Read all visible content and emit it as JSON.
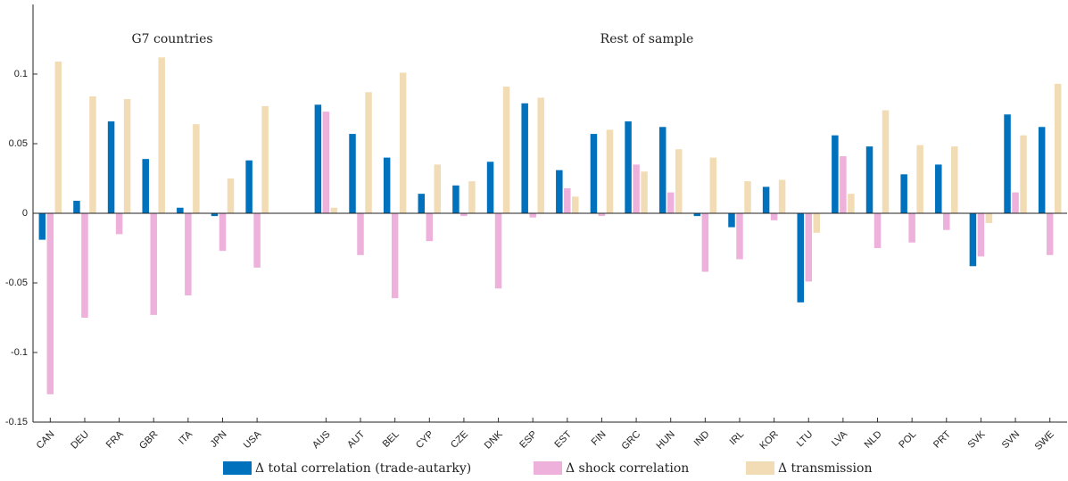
{
  "chart_data": {
    "type": "bar",
    "annotations": [
      "G7 countries",
      "Rest of sample"
    ],
    "categories": [
      "CAN",
      "DEU",
      "FRA",
      "GBR",
      "ITA",
      "JPN",
      "USA",
      null,
      "AUS",
      "AUT",
      "BEL",
      "CYP",
      "CZE",
      "DNK",
      "ESP",
      "EST",
      "FIN",
      "GRC",
      "HUN",
      "IND",
      "IRL",
      "KOR",
      "LTU",
      "LVA",
      "NLD",
      "POL",
      "PRT",
      "SVK",
      "SVN",
      "SWE"
    ],
    "series": [
      {
        "name": "Δ total correlation (trade-autarky)",
        "color": "#0072bd",
        "values": [
          -0.019,
          0.009,
          0.066,
          0.039,
          0.004,
          -0.002,
          0.038,
          null,
          0.078,
          0.057,
          0.04,
          0.014,
          0.02,
          0.037,
          0.079,
          0.031,
          0.057,
          0.066,
          0.062,
          -0.002,
          -0.01,
          0.019,
          -0.064,
          0.056,
          0.048,
          0.028,
          0.035,
          -0.038,
          0.071,
          0.062
        ]
      },
      {
        "name": "Δ shock correlation",
        "color": "#edb1dc",
        "values": [
          -0.13,
          -0.075,
          -0.015,
          -0.073,
          -0.059,
          -0.027,
          -0.039,
          null,
          0.073,
          -0.03,
          -0.061,
          -0.02,
          -0.002,
          -0.054,
          -0.003,
          0.018,
          -0.002,
          0.035,
          0.015,
          -0.042,
          -0.033,
          -0.005,
          -0.049,
          0.041,
          -0.025,
          -0.021,
          -0.012,
          -0.031,
          0.015,
          -0.03
        ]
      },
      {
        "name": "Δ transmission",
        "color": "#f2dcb5",
        "values": [
          0.109,
          0.084,
          0.082,
          0.112,
          0.064,
          0.025,
          0.077,
          null,
          0.004,
          0.087,
          0.101,
          0.035,
          0.023,
          0.091,
          0.083,
          0.012,
          0.06,
          0.03,
          0.046,
          0.04,
          0.023,
          0.024,
          -0.014,
          0.014,
          0.074,
          0.049,
          0.048,
          -0.007,
          0.056,
          0.093
        ]
      }
    ],
    "ylim": [
      -0.15,
      0.15
    ],
    "yticks": [
      -0.15,
      -0.1,
      -0.05,
      0,
      0.05,
      0.1
    ],
    "legend": "bottom"
  }
}
